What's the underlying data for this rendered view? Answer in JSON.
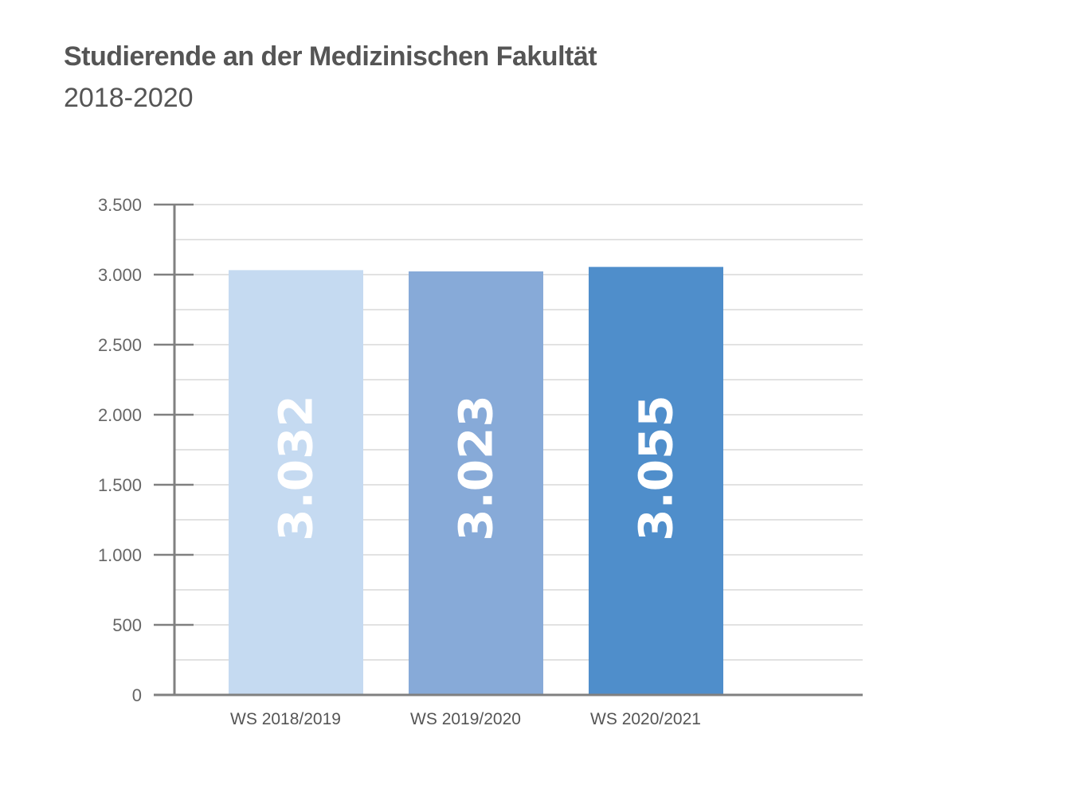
{
  "chart_data": {
    "type": "bar",
    "title": "Studierende an der Medizinischen Fakultät",
    "subtitle": "2018-2020",
    "xlabel": "",
    "ylabel": "",
    "ylim": [
      0,
      3500
    ],
    "yticks": [
      0,
      500,
      1000,
      1500,
      2000,
      2500,
      3000,
      3500
    ],
    "ytick_labels": [
      "0",
      "500",
      "1.000",
      "1.500",
      "2.000",
      "2.500",
      "3.000",
      "3.500"
    ],
    "grid": true,
    "legend": "none",
    "categories": [
      "WS 2018/2019",
      "WS 2019/2020",
      "WS 2020/2021"
    ],
    "values": [
      3032,
      3023,
      3055
    ],
    "value_labels": [
      "3.032",
      "3.023",
      "3.055"
    ],
    "colors": [
      "#c5daf1",
      "#87aad8",
      "#4f8ecb"
    ]
  }
}
